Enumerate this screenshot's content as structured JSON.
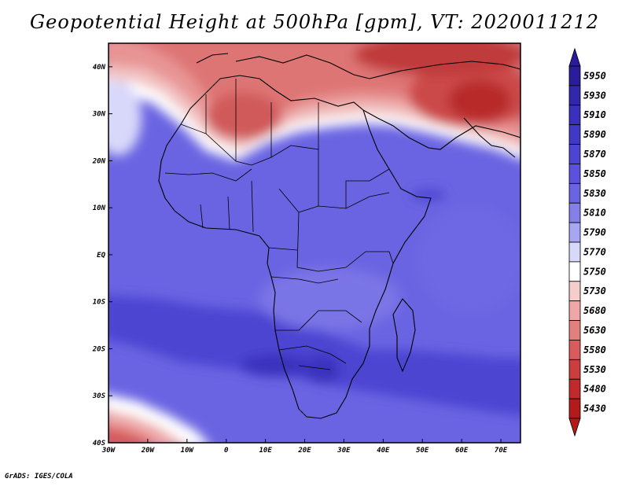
{
  "title": "Geopotential Height at 500hPa [gpm], VT: 2020011212",
  "credit": "GrADS: IGES/COLA",
  "map": {
    "lon_range": [
      -30,
      75
    ],
    "lat_range": [
      -40,
      45
    ],
    "lon_ticks": [
      {
        "value": -30,
        "label": "30W"
      },
      {
        "value": -20,
        "label": "20W"
      },
      {
        "value": -10,
        "label": "10W"
      },
      {
        "value": 0,
        "label": "0"
      },
      {
        "value": 10,
        "label": "10E"
      },
      {
        "value": 20,
        "label": "20E"
      },
      {
        "value": 30,
        "label": "30E"
      },
      {
        "value": 40,
        "label": "40E"
      },
      {
        "value": 50,
        "label": "50E"
      },
      {
        "value": 60,
        "label": "60E"
      },
      {
        "value": 70,
        "label": "70E"
      }
    ],
    "lat_ticks": [
      {
        "value": 40,
        "label": "40N"
      },
      {
        "value": 30,
        "label": "30N"
      },
      {
        "value": 20,
        "label": "20N"
      },
      {
        "value": 10,
        "label": "10N"
      },
      {
        "value": 0,
        "label": "EQ"
      },
      {
        "value": -10,
        "label": "10S"
      },
      {
        "value": -20,
        "label": "20S"
      },
      {
        "value": -30,
        "label": "30S"
      },
      {
        "value": -40,
        "label": "40S"
      }
    ]
  },
  "colorbar": {
    "levels": [
      "5950",
      "5930",
      "5910",
      "5890",
      "5870",
      "5850",
      "5830",
      "5810",
      "5790",
      "5770",
      "5750",
      "5730",
      "5680",
      "5630",
      "5580",
      "5530",
      "5480",
      "5430"
    ],
    "colors": [
      "#2a1c9a",
      "#3226ad",
      "#3a30bd",
      "#4238c8",
      "#4c44d2",
      "#5a52dc",
      "#6a64e2",
      "#8480e8",
      "#a8a6f2",
      "#d8d8fa",
      "#ffffff",
      "#f6cccc",
      "#eea6a6",
      "#e28080",
      "#d85c5c",
      "#cc3e3e",
      "#c02a2a",
      "#b41a1a"
    ]
  }
}
